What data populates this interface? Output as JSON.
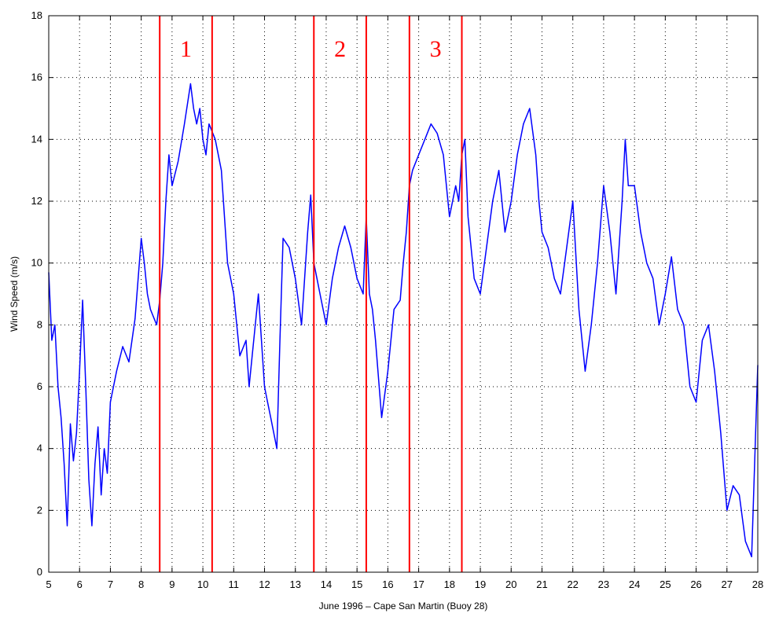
{
  "chart_data": {
    "type": "line",
    "title": "",
    "xlabel": "June 1996 – Cape San Martin (Buoy 28)",
    "ylabel": "Wind Speed (m/s)",
    "xlim": [
      5,
      28
    ],
    "ylim": [
      0,
      18
    ],
    "x_ticks": [
      5,
      6,
      7,
      8,
      9,
      10,
      11,
      12,
      13,
      14,
      15,
      16,
      17,
      18,
      19,
      20,
      21,
      22,
      23,
      24,
      25,
      26,
      27,
      28
    ],
    "y_ticks": [
      0,
      2,
      4,
      6,
      8,
      10,
      12,
      14,
      16,
      18
    ],
    "grid": true,
    "grid_style": "dotted",
    "series": [
      {
        "color": "#0000ff",
        "x": [
          5.0,
          5.1,
          5.2,
          5.3,
          5.4,
          5.5,
          5.6,
          5.7,
          5.8,
          5.9,
          6.0,
          6.1,
          6.2,
          6.3,
          6.4,
          6.5,
          6.6,
          6.7,
          6.8,
          6.9,
          7.0,
          7.2,
          7.4,
          7.6,
          7.8,
          8.0,
          8.1,
          8.2,
          8.3,
          8.5,
          8.6,
          8.7,
          8.8,
          8.9,
          9.0,
          9.2,
          9.4,
          9.6,
          9.7,
          9.8,
          9.9,
          10.0,
          10.1,
          10.2,
          10.4,
          10.6,
          10.8,
          11.0,
          11.2,
          11.4,
          11.5,
          11.6,
          11.8,
          12.0,
          12.1,
          12.2,
          12.4,
          12.5,
          12.6,
          12.8,
          13.0,
          13.2,
          13.4,
          13.5,
          13.6,
          13.7,
          13.8,
          14.0,
          14.2,
          14.4,
          14.6,
          14.8,
          15.0,
          15.2,
          15.3,
          15.4,
          15.5,
          15.6,
          15.8,
          16.0,
          16.2,
          16.4,
          16.5,
          16.6,
          16.7,
          16.8,
          17.0,
          17.2,
          17.4,
          17.6,
          17.8,
          18.0,
          18.2,
          18.3,
          18.4,
          18.5,
          18.6,
          18.8,
          19.0,
          19.2,
          19.4,
          19.6,
          19.8,
          20.0,
          20.2,
          20.4,
          20.6,
          20.8,
          20.9,
          21.0,
          21.2,
          21.4,
          21.6,
          21.8,
          22.0,
          22.2,
          22.4,
          22.6,
          22.8,
          23.0,
          23.2,
          23.4,
          23.6,
          23.7,
          23.8,
          24.0,
          24.2,
          24.4,
          24.6,
          24.8,
          25.0,
          25.2,
          25.4,
          25.6,
          25.8,
          26.0,
          26.2,
          26.4,
          26.6,
          26.8,
          27.0,
          27.2,
          27.4,
          27.6,
          27.8,
          28.0
        ],
        "y": [
          9.7,
          7.5,
          8.0,
          6.0,
          5.0,
          3.5,
          1.5,
          4.8,
          3.6,
          4.5,
          6.5,
          8.8,
          6.0,
          3.0,
          1.5,
          3.5,
          4.7,
          2.5,
          4.0,
          3.2,
          5.5,
          6.5,
          7.3,
          6.8,
          8.2,
          10.8,
          10.0,
          9.0,
          8.5,
          8.0,
          8.8,
          10.0,
          12.0,
          13.5,
          12.5,
          13.3,
          14.5,
          15.8,
          15.0,
          14.5,
          15.0,
          14.0,
          13.5,
          14.5,
          14.0,
          13.0,
          10.0,
          9.0,
          7.0,
          7.5,
          6.0,
          7.0,
          9.0,
          6.0,
          5.5,
          5.0,
          4.0,
          7.5,
          10.8,
          10.5,
          9.5,
          8.0,
          11.0,
          12.2,
          10.0,
          9.5,
          9.0,
          8.0,
          9.5,
          10.5,
          11.2,
          10.5,
          9.5,
          9.0,
          11.5,
          9.0,
          8.5,
          7.5,
          5.0,
          6.5,
          8.5,
          8.8,
          10.0,
          11.0,
          12.5,
          13.0,
          13.5,
          14.0,
          14.5,
          14.2,
          13.5,
          11.5,
          12.5,
          12.0,
          13.5,
          14.0,
          11.5,
          9.5,
          9.0,
          10.5,
          12.0,
          13.0,
          11.0,
          12.0,
          13.5,
          14.5,
          15.0,
          13.5,
          12.0,
          11.0,
          10.5,
          9.5,
          9.0,
          10.5,
          12.0,
          8.5,
          6.5,
          8.0,
          10.0,
          12.5,
          11.0,
          9.0,
          12.0,
          14.0,
          12.5,
          12.5,
          11.0,
          10.0,
          9.5,
          8.0,
          9.0,
          10.2,
          8.5,
          8.0,
          6.0,
          5.5,
          7.5,
          8.0,
          6.5,
          4.5,
          2.0,
          2.8,
          2.5,
          1.0,
          0.5,
          6.7
        ]
      }
    ],
    "vertical_lines": {
      "color": "#ff0000",
      "x": [
        8.6,
        10.3,
        13.6,
        15.3,
        16.7,
        18.4
      ]
    },
    "region_labels": [
      {
        "text": "1",
        "x": 9.45
      },
      {
        "text": "2",
        "x": 14.45
      },
      {
        "text": "3",
        "x": 17.55
      }
    ]
  }
}
